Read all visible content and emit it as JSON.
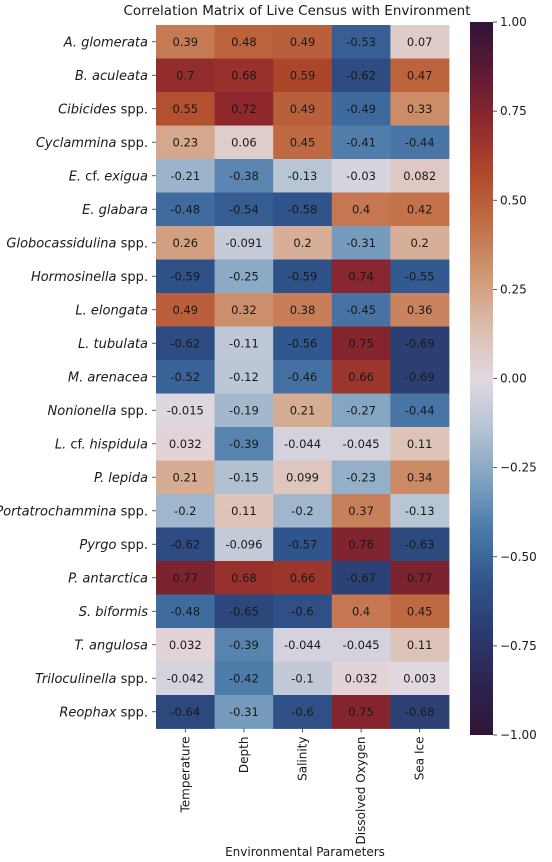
{
  "chart_data": {
    "type": "heatmap",
    "title": "Correlation Matrix of Live Census with Environment",
    "xlabel": "Environmental Parameters",
    "ylabel": "",
    "columns": [
      "Temperature",
      "Depth",
      "Salinity",
      "Dissolved Oxygen",
      "Sea Ice"
    ],
    "rows": [
      {
        "label": [
          "A. glomerata"
        ],
        "values": [
          "0.39",
          "0.48",
          "0.49",
          "-0.53",
          "0.07"
        ]
      },
      {
        "label": [
          "B. aculeata"
        ],
        "values": [
          "0.7",
          "0.68",
          "0.59",
          "-0.62",
          "0.47"
        ]
      },
      {
        "label": [
          "Cibicides",
          " spp."
        ],
        "values": [
          "0.55",
          "0.72",
          "0.49",
          "-0.49",
          "0.33"
        ]
      },
      {
        "label": [
          "Cyclammina",
          " spp."
        ],
        "values": [
          "0.23",
          "0.06",
          "0.45",
          "-0.41",
          "-0.44"
        ]
      },
      {
        "label": [
          "E.",
          " cf. ",
          "exigua"
        ],
        "values": [
          "-0.21",
          "-0.38",
          "-0.13",
          "-0.03",
          "0.082"
        ]
      },
      {
        "label": [
          "E. glabara"
        ],
        "values": [
          "-0.48",
          "-0.54",
          "-0.58",
          "0.4",
          "0.42"
        ]
      },
      {
        "label": [
          "Globocassidulina",
          " spp."
        ],
        "values": [
          "0.26",
          "-0.091",
          "0.2",
          "-0.31",
          "0.2"
        ]
      },
      {
        "label": [
          "Hormosinella",
          " spp."
        ],
        "values": [
          "-0.59",
          "-0.25",
          "-0.59",
          "0.74",
          "-0.55"
        ]
      },
      {
        "label": [
          "L. elongata"
        ],
        "values": [
          "0.49",
          "0.32",
          "0.38",
          "-0.45",
          "0.36"
        ]
      },
      {
        "label": [
          "L. tubulata"
        ],
        "values": [
          "-0.62",
          "-0.11",
          "-0.56",
          "0.75",
          "-0.69"
        ]
      },
      {
        "label": [
          "M. arenacea"
        ],
        "values": [
          "-0.52",
          "-0.12",
          "-0.46",
          "0.66",
          "-0.69"
        ]
      },
      {
        "label": [
          "Nonionella",
          " spp."
        ],
        "values": [
          "-0.015",
          "-0.19",
          "0.21",
          "-0.27",
          "-0.44"
        ]
      },
      {
        "label": [
          "L.",
          " cf. ",
          "hispidula"
        ],
        "values": [
          "0.032",
          "-0.39",
          "-0.044",
          "-0.045",
          "0.11"
        ]
      },
      {
        "label": [
          "P. lepida"
        ],
        "values": [
          "0.21",
          "-0.15",
          "0.099",
          "-0.23",
          "0.34"
        ]
      },
      {
        "label": [
          "Portatrochammina",
          " spp."
        ],
        "values": [
          "-0.2",
          "0.11",
          "-0.2",
          "0.37",
          "-0.13"
        ]
      },
      {
        "label": [
          "Pyrgo",
          " spp."
        ],
        "values": [
          "-0.62",
          "-0.096",
          "-0.57",
          "0.76",
          "-0.63"
        ]
      },
      {
        "label": [
          "P. antarctica"
        ],
        "values": [
          "0.77",
          "0.68",
          "0.66",
          "-0.67",
          "0.77"
        ]
      },
      {
        "label": [
          "S. biformis"
        ],
        "values": [
          "-0.48",
          "-0.65",
          "-0.6",
          "0.4",
          "0.45"
        ]
      },
      {
        "label": [
          "T. angulosa"
        ],
        "values": [
          "0.032",
          "-0.39",
          "-0.044",
          "-0.045",
          "0.11"
        ]
      },
      {
        "label": [
          "Triloculinella",
          " spp."
        ],
        "values": [
          "-0.042",
          "-0.42",
          "-0.1",
          "0.032",
          "0.003"
        ]
      },
      {
        "label": [
          "Reophax",
          " spp."
        ],
        "values": [
          "-0.64",
          "-0.31",
          "-0.6",
          "0.75",
          "-0.68"
        ]
      }
    ],
    "colorbar": {
      "range": [
        -1.0,
        1.0
      ],
      "ticks": [
        "1.00",
        "0.75",
        "0.50",
        "0.25",
        "0.00",
        "−0.25",
        "−0.50",
        "−0.75",
        "−1.00"
      ],
      "colormap": "twilight_shifted",
      "color_stops": [
        "#2f1436",
        "#2e2351",
        "#2b3a6d",
        "#2f558c",
        "#4a78a8",
        "#7fa2c1",
        "#b4c3d3",
        "#e2d9e2",
        "#dcbcac",
        "#d09977",
        "#c26f47",
        "#b04a2b",
        "#90292c",
        "#5e1a35",
        "#2f1436"
      ]
    }
  }
}
